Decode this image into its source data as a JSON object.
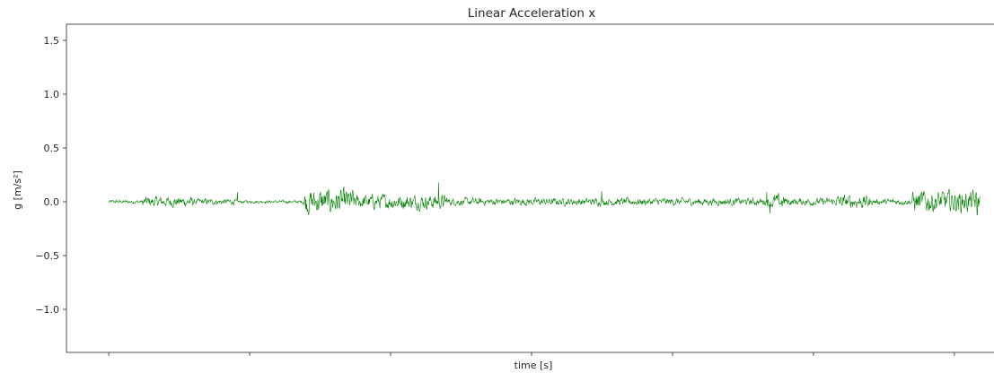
{
  "chart_data": {
    "type": "line",
    "title": "Linear Acceleration x",
    "xlabel": "time [s]",
    "ylabel": "g [m/s²]",
    "ylim": [
      -1.4,
      1.65
    ],
    "xlim": [
      -0.05,
      1.05
    ],
    "yticks": [
      1.5,
      1.0,
      0.5,
      0.0,
      -0.5,
      -1.0
    ],
    "ytick_labels": [
      "1.5",
      "1.0",
      "0.5",
      "0.0",
      "−0.5",
      "−1.0"
    ],
    "xticks": [
      0.0,
      0.1667,
      0.3333,
      0.5,
      0.6667,
      0.8333,
      1.0
    ],
    "grid": false,
    "series": [
      {
        "color": "#008000",
        "x_range": [
          0.0,
          1.03
        ],
        "noise_profile": [
          {
            "from": 0.0,
            "to": 0.04,
            "amp": 0.012
          },
          {
            "from": 0.04,
            "to": 0.1,
            "amp": 0.035
          },
          {
            "from": 0.1,
            "to": 0.15,
            "amp": 0.02
          },
          {
            "from": 0.15,
            "to": 0.23,
            "amp": 0.01
          },
          {
            "from": 0.23,
            "to": 0.29,
            "amp": 0.085
          },
          {
            "from": 0.29,
            "to": 0.4,
            "amp": 0.05
          },
          {
            "from": 0.4,
            "to": 0.78,
            "amp": 0.025
          },
          {
            "from": 0.78,
            "to": 0.8,
            "amp": 0.05
          },
          {
            "from": 0.8,
            "to": 0.86,
            "amp": 0.025
          },
          {
            "from": 0.86,
            "to": 0.9,
            "amp": 0.045
          },
          {
            "from": 0.9,
            "to": 0.95,
            "amp": 0.02
          },
          {
            "from": 0.95,
            "to": 1.03,
            "amp": 0.075
          }
        ],
        "spikes": [
          {
            "x": 0.152,
            "y": 0.09
          },
          {
            "x": 0.39,
            "y": 0.18
          },
          {
            "x": 0.583,
            "y": 0.1
          },
          {
            "x": 0.778,
            "y": 0.09
          },
          {
            "x": 0.782,
            "y": -0.11
          },
          {
            "x": 1.027,
            "y": -0.12
          }
        ]
      }
    ]
  }
}
